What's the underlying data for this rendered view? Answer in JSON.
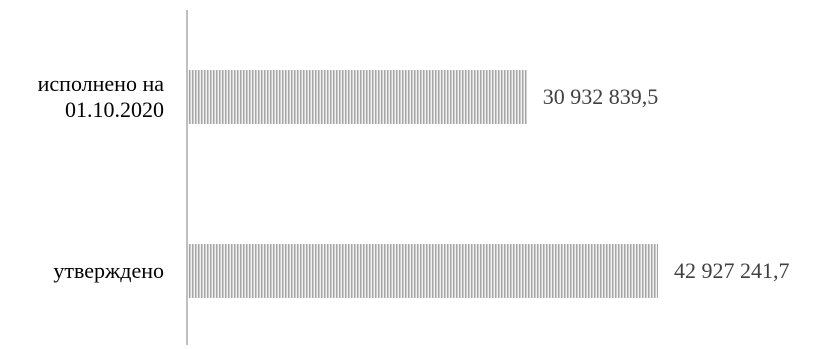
{
  "chart_data": {
    "type": "bar",
    "orientation": "horizontal",
    "categories": [
      "исполнено на 01.10.2020",
      "утверждено"
    ],
    "category_label_lines": [
      [
        "исполнено на",
        "01.10.2020"
      ],
      [
        "утверждено"
      ]
    ],
    "values": [
      30932839.5,
      42927241.7
    ],
    "data_labels": [
      "30 932 839,5",
      "42 927 241,7"
    ],
    "title": "",
    "xlabel": "",
    "ylabel": "",
    "xlim": [
      0,
      50000000
    ],
    "grid": false,
    "legend": "none",
    "bar_fill": "vertical-hatch",
    "colors": {
      "bar_light": "#f2f2f2",
      "bar_dark": "#a6a6a6",
      "axis": "#bfbfbf",
      "category_text": "#000000",
      "label_text": "#404040"
    }
  }
}
